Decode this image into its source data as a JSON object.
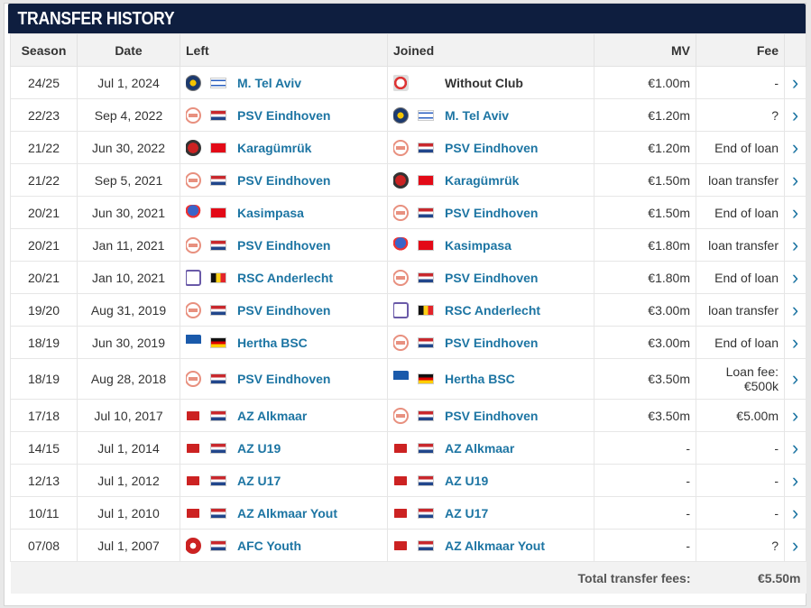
{
  "title": "TRANSFER HISTORY",
  "columns": {
    "season": "Season",
    "date": "Date",
    "left": "Left",
    "joined": "Joined",
    "mv": "MV",
    "fee": "Fee"
  },
  "rows": [
    {
      "season": "24/25",
      "date": "Jul 1, 2024",
      "left": {
        "name": "M. Tel Aviv",
        "logo": "mta",
        "flag": "il"
      },
      "joined": {
        "name": "Without Club",
        "logo": "nc",
        "flag": ""
      },
      "mv": "€1.00m",
      "fee": "-"
    },
    {
      "season": "22/23",
      "date": "Sep 4, 2022",
      "left": {
        "name": "PSV Eindhoven",
        "logo": "psv",
        "flag": "nl"
      },
      "joined": {
        "name": "M. Tel Aviv",
        "logo": "mta",
        "flag": "il"
      },
      "mv": "€1.20m",
      "fee": "?"
    },
    {
      "season": "21/22",
      "date": "Jun 30, 2022",
      "left": {
        "name": "Karagümrük",
        "logo": "kar",
        "flag": "tr"
      },
      "joined": {
        "name": "PSV Eindhoven",
        "logo": "psv",
        "flag": "nl"
      },
      "mv": "€1.20m",
      "fee": "End of loan"
    },
    {
      "season": "21/22",
      "date": "Sep 5, 2021",
      "left": {
        "name": "PSV Eindhoven",
        "logo": "psv",
        "flag": "nl"
      },
      "joined": {
        "name": "Karagümrük",
        "logo": "kar",
        "flag": "tr"
      },
      "mv": "€1.50m",
      "fee": "loan transfer"
    },
    {
      "season": "20/21",
      "date": "Jun 30, 2021",
      "left": {
        "name": "Kasimpasa",
        "logo": "kas",
        "flag": "tr"
      },
      "joined": {
        "name": "PSV Eindhoven",
        "logo": "psv",
        "flag": "nl"
      },
      "mv": "€1.50m",
      "fee": "End of loan"
    },
    {
      "season": "20/21",
      "date": "Jan 11, 2021",
      "left": {
        "name": "PSV Eindhoven",
        "logo": "psv",
        "flag": "nl"
      },
      "joined": {
        "name": "Kasimpasa",
        "logo": "kas",
        "flag": "tr"
      },
      "mv": "€1.80m",
      "fee": "loan transfer"
    },
    {
      "season": "20/21",
      "date": "Jan 10, 2021",
      "left": {
        "name": "RSC Anderlecht",
        "logo": "rsc",
        "flag": "be"
      },
      "joined": {
        "name": "PSV Eindhoven",
        "logo": "psv",
        "flag": "nl"
      },
      "mv": "€1.80m",
      "fee": "End of loan"
    },
    {
      "season": "19/20",
      "date": "Aug 31, 2019",
      "left": {
        "name": "PSV Eindhoven",
        "logo": "psv",
        "flag": "nl"
      },
      "joined": {
        "name": "RSC Anderlecht",
        "logo": "rsc",
        "flag": "be"
      },
      "mv": "€3.00m",
      "fee": "loan transfer"
    },
    {
      "season": "18/19",
      "date": "Jun 30, 2019",
      "left": {
        "name": "Hertha BSC",
        "logo": "her",
        "flag": "de"
      },
      "joined": {
        "name": "PSV Eindhoven",
        "logo": "psv",
        "flag": "nl"
      },
      "mv": "€3.00m",
      "fee": "End of loan"
    },
    {
      "season": "18/19",
      "date": "Aug 28, 2018",
      "left": {
        "name": "PSV Eindhoven",
        "logo": "psv",
        "flag": "nl"
      },
      "joined": {
        "name": "Hertha BSC",
        "logo": "her",
        "flag": "de"
      },
      "mv": "€3.50m",
      "fee": "Loan fee:",
      "fee2": "€500k"
    },
    {
      "season": "17/18",
      "date": "Jul 10, 2017",
      "left": {
        "name": "AZ Alkmaar",
        "logo": "az",
        "flag": "nl"
      },
      "joined": {
        "name": "PSV Eindhoven",
        "logo": "psv",
        "flag": "nl"
      },
      "mv": "€3.50m",
      "fee": "€5.00m"
    },
    {
      "season": "14/15",
      "date": "Jul 1, 2014",
      "left": {
        "name": "AZ U19",
        "logo": "az",
        "flag": "nl"
      },
      "joined": {
        "name": "AZ Alkmaar",
        "logo": "az",
        "flag": "nl"
      },
      "mv": "-",
      "fee": "-"
    },
    {
      "season": "12/13",
      "date": "Jul 1, 2012",
      "left": {
        "name": "AZ U17",
        "logo": "az",
        "flag": "nl"
      },
      "joined": {
        "name": "AZ U19",
        "logo": "az",
        "flag": "nl"
      },
      "mv": "-",
      "fee": "-"
    },
    {
      "season": "10/11",
      "date": "Jul 1, 2010",
      "left": {
        "name": "AZ Alkmaar Yout",
        "logo": "az",
        "flag": "nl"
      },
      "joined": {
        "name": "AZ U17",
        "logo": "az",
        "flag": "nl"
      },
      "mv": "-",
      "fee": "-"
    },
    {
      "season": "07/08",
      "date": "Jul 1, 2007",
      "left": {
        "name": "AFC Youth",
        "logo": "afc",
        "flag": "nl"
      },
      "joined": {
        "name": "AZ Alkmaar Yout",
        "logo": "az",
        "flag": "nl"
      },
      "mv": "-",
      "fee": "?"
    }
  ],
  "footer": {
    "label": "Total transfer fees:",
    "value": "€5.50m"
  },
  "colors": {
    "header_bg": "#0e1e3f",
    "link": "#1d75a3",
    "row_border": "#e6e6e6",
    "header_row_bg": "#f2f2f2"
  }
}
